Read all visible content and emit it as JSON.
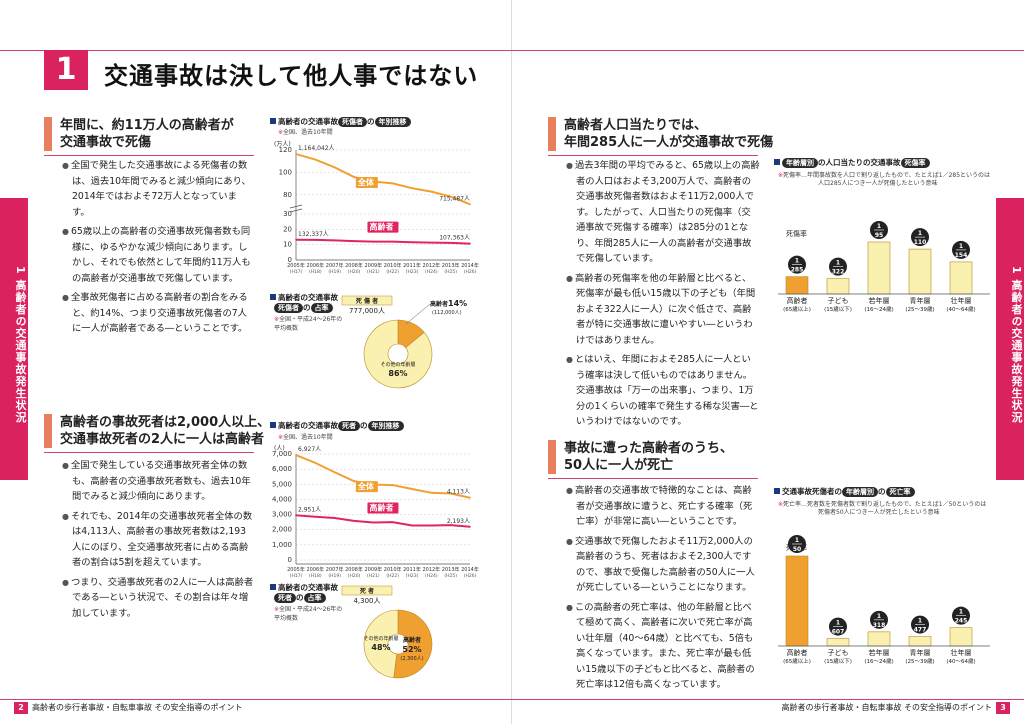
{
  "chapter": {
    "number": "1",
    "title": "交通事故は決して他人事ではない"
  },
  "side_tab": {
    "left": "1 高齢者の交通事故発生状況",
    "right": "1 高齢者の交通事故発生状況"
  },
  "footer": {
    "left_page": "2",
    "left_text": "高齢者の歩行者事故・自転車事故 その安全指導のポイント",
    "right_page": "3",
    "right_text": "高齢者の歩行者事故・自転車事故 その安全指導のポイント"
  },
  "sections": {
    "s1": {
      "heading_l1": "年間に、約11万人の高齢者が",
      "heading_l2": "交通事故で死傷",
      "bullets": [
        "全国で発生した交通事故による死傷者の数は、過去10年間でみると減少傾向にあり、2014年ではおよそ72万人となっています。",
        "65歳以上の高齢者の交通事故死傷者数も同様に、ゆるやかな減少傾向にあります。しかし、それでも依然として年間約11万人もの高齢者が交通事故で死傷しています。",
        "全事故死傷者に占める高齢者の割合をみると、約14%、つまり交通事故死傷者の7人に一人が高齢者である―ということです。"
      ]
    },
    "s2": {
      "heading_l1": "高齢者の事故死者は2,000人以上、",
      "heading_l2": "交通事故死者の2人に一人は高齢者",
      "bullets": [
        "全国で発生している交通事故死者全体の数も、高齢者の交通事故死者数も、過去10年間でみると減少傾向にあります。",
        "それでも、2014年の交通事故死者全体の数は4,113人、高齢者の事故死者数は2,193人にのぼり、全交通事故死者に占める高齢者の割合は5割を超えています。",
        "つまり、交通事故死者の2人に一人は高齢者である―という状況で、その割合は年々増加しています。"
      ]
    },
    "s3": {
      "heading_l1": "高齢者人口当たりでは、",
      "heading_l2": "年間285人に一人が交通事故で死傷",
      "bullets": [
        "過去3年間の平均でみると、65歳以上の高齢者の人口はおよそ3,200万人で、高齢者の交通事故死傷者数はおよそ11万2,000人です。したがって、人口当たりの死傷率（交通事故で死傷する確率）は285分の1となり、年間285人に一人の高齢者が交通事故で死傷しています。",
        "高齢者の死傷率を他の年齢層と比べると、死傷率が最も低い15歳以下の子ども（年間およそ322人に一人）に次ぐ低さで、高齢者が特に交通事故に遭いやすい―というわけではありません。",
        "とはいえ、年間におよそ285人に一人という確率は決して低いものではありません。交通事故は「万一の出来事」、つまり、1万分の1くらいの確率で発生する稀な災害―というわけではないのです。"
      ]
    },
    "s4": {
      "heading_l1": "事故に遭った高齢者のうち、",
      "heading_l2": "50人に一人が死亡",
      "bullets": [
        "高齢者の交通事故で特徴的なことは、高齢者が交通事故に遭うと、死亡する確率（死亡率）が非常に高い―ということです。",
        "交通事故で死傷したおよそ11万2,000人の高齢者のうち、死者はおよそ2,300人ですので、事故で受傷した高齢者の50人に一人が死亡している―ということになります。",
        "この高齢者の死亡率は、他の年齢層と比べて極めて高く、高齢者に次いで死亡率が高い壮年層（40～64歳）と比べても、5倍も高くなっています。また、死亡率が最も低い15歳以下の子どもと比べると、高齢者の死亡率は12倍も高くなっています。"
      ]
    }
  },
  "charts": {
    "c1": {
      "title_pre": "高齢者の交通事故",
      "pill1": "死傷者",
      "mid": "の",
      "pill2": "年別推移",
      "note": "全国、過去10年間",
      "unit": "(万人)"
    },
    "c2": {
      "title": "高齢者の交通事故",
      "pill1": "死傷者",
      "mid": "の",
      "pill2": "占率",
      "note": "全国・平成24～26年の平均概数",
      "box_label": "死 傷 者",
      "box_value": "777,000人",
      "elderly_label": "高齢者",
      "elderly_pct": "14%",
      "elderly_count": "(112,000人)",
      "other_label": "その他の年齢層",
      "other_pct": "86%"
    },
    "c3": {
      "title_pre": "高齢者の交通事故",
      "pill1": "死者",
      "mid": "の",
      "pill2": "年別推移",
      "note": "全国、過去10年間",
      "unit": "(人)"
    },
    "c4": {
      "title": "高齢者の交通事故",
      "pill1": "死者",
      "mid": "の",
      "pill2": "占率",
      "note": "全国・平成24～26年の平均概数",
      "box_label": "死 者",
      "box_value": "4,300人",
      "elderly_label": "高齢者",
      "elderly_pct": "52%",
      "elderly_count": "(2,300人)",
      "other_label": "その他の年齢層",
      "other_pct": "48%"
    },
    "c5": {
      "pill1": "年齢層別",
      "title": "の人口当たりの交通事故",
      "pill2": "死傷率",
      "note_l1": "死傷率…年間事故数を人口で割り返したもので、たとえば1／285というのは",
      "note_l2": "人口285人につき一人が死傷したという意味",
      "rate_label": "死傷率"
    },
    "c6": {
      "title": "交通事故死傷者の",
      "pill1": "年齢層別",
      "mid": "の",
      "pill2": "死亡率",
      "note_l1": "死亡率…死者数を死傷者数で割り返したもので、たとえば1／50というのは",
      "note_l2": "死傷者50人につき一人が死亡したという意味",
      "rate_label": "死亡率"
    }
  },
  "chart_data": [
    {
      "type": "line",
      "x": [
        "2005年",
        "2006年",
        "2007年",
        "2008年",
        "2009年",
        "2010年",
        "2011年",
        "2012年",
        "2013年",
        "2014年"
      ],
      "x_sub": [
        "(H17)",
        "(H18)",
        "(H19)",
        "(H20)",
        "(H21)",
        "(H22)",
        "(H23)",
        "(H24)",
        "(H25)",
        "(H26)"
      ],
      "series": [
        {
          "name": "全体",
          "values": [
            116.4,
            111.5,
            104.5,
            95.9,
            91.8,
            90.2,
            85.9,
            82.8,
            78.4,
            71.5
          ],
          "first_label": "1,164,042人",
          "last_label": "715,487人",
          "color": "#f0a030"
        },
        {
          "name": "高齢者",
          "values": [
            13.2,
            13.1,
            12.8,
            12.3,
            12.0,
            12.0,
            11.6,
            11.3,
            11.2,
            10.7
          ],
          "first_label": "132,337人",
          "last_label": "107,363人",
          "color": "#e0245e"
        }
      ],
      "yticks": [
        0,
        10,
        20,
        30,
        80,
        100,
        120
      ],
      "ylim": [
        0,
        120
      ]
    },
    {
      "type": "pie",
      "slices": [
        {
          "label": "高齢者",
          "value": 14
        },
        {
          "label": "その他の年齢層",
          "value": 86
        }
      ]
    },
    {
      "type": "line",
      "x": [
        "2005年",
        "2006年",
        "2007年",
        "2008年",
        "2009年",
        "2010年",
        "2011年",
        "2012年",
        "2013年",
        "2014年"
      ],
      "x_sub": [
        "(H17)",
        "(H18)",
        "(H19)",
        "(H20)",
        "(H21)",
        "(H22)",
        "(H23)",
        "(H24)",
        "(H25)",
        "(H26)"
      ],
      "series": [
        {
          "name": "全体",
          "values": [
            6927,
            6415,
            5796,
            5209,
            4979,
            4948,
            4691,
            4438,
            4388,
            4113
          ],
          "first_label": "6,927人",
          "last_label": "4,113人",
          "color": "#f0a030"
        },
        {
          "name": "高齢者",
          "values": [
            2951,
            2855,
            2772,
            2584,
            2473,
            2499,
            2281,
            2280,
            2303,
            2193
          ],
          "first_label": "2,951人",
          "last_label": "2,193人",
          "color": "#e0245e"
        }
      ],
      "yticks": [
        0,
        1000,
        2000,
        3000,
        4000,
        5000,
        6000,
        7000
      ],
      "ylim": [
        0,
        7000
      ]
    },
    {
      "type": "pie",
      "slices": [
        {
          "label": "高齢者",
          "value": 52
        },
        {
          "label": "その他の年齢層",
          "value": 48
        }
      ]
    },
    {
      "type": "bar",
      "categories": [
        "高齢者",
        "子ども",
        "若年層",
        "青年層",
        "壮年層"
      ],
      "sub": [
        "(65歳以上)",
        "(15歳以下)",
        "(16～24歳)",
        "(25～39歳)",
        "(40～64歳)"
      ],
      "values": [
        285,
        322,
        95,
        110,
        154
      ],
      "labels": [
        "1/285",
        "1/322",
        "1/95",
        "1/110",
        "1/154"
      ]
    },
    {
      "type": "bar",
      "categories": [
        "高齢者",
        "子ども",
        "若年層",
        "青年層",
        "壮年層"
      ],
      "sub": [
        "(65歳以上)",
        "(15歳以下)",
        "(16～24歳)",
        "(25～39歳)",
        "(40～64歳)"
      ],
      "values": [
        50,
        607,
        318,
        477,
        245
      ],
      "labels": [
        "1/50",
        "1/607",
        "1/318",
        "1/477",
        "1/245"
      ]
    }
  ],
  "colors": {
    "accent": "#d9225e",
    "orange": "#f0a030",
    "pale": "#faf0b0"
  }
}
